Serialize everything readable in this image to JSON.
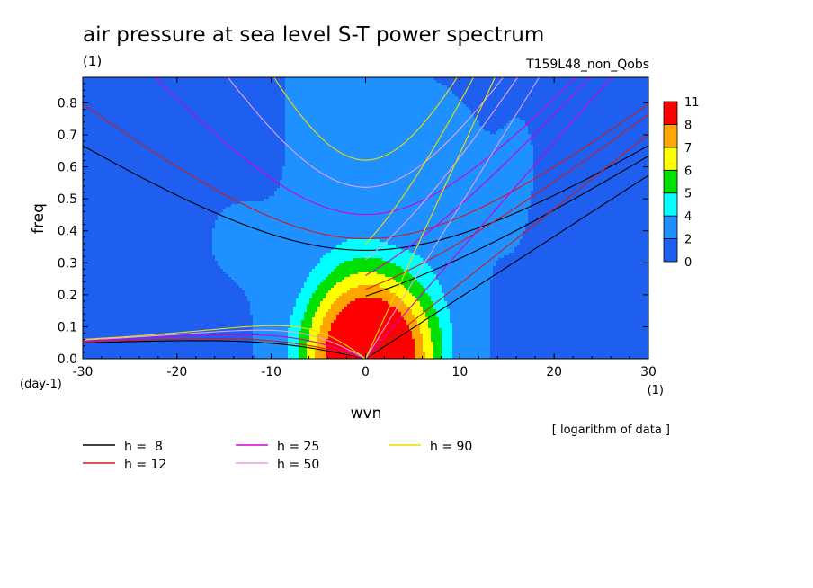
{
  "chart_data": {
    "type": "heatmap",
    "title": "air pressure at sea level S-T power spectrum",
    "title_unit": "(1)",
    "subtitle": "T159L48_non_Qobs",
    "xlabel": "wvn",
    "xlabel_unit": "(1)",
    "ylabel": "freq",
    "ylabel_unit": "(day-1)",
    "xlim": [
      -30,
      30
    ],
    "ylim": [
      0,
      0.88
    ],
    "x_ticks": [
      -30,
      -20,
      -10,
      0,
      10,
      20,
      30
    ],
    "y_ticks": [
      0.0,
      0.1,
      0.2,
      0.3,
      0.4,
      0.5,
      0.6,
      0.7,
      0.8
    ],
    "note": "[ logarithm of data ]",
    "colorbar": {
      "levels": [
        0,
        2,
        4,
        5,
        6,
        7,
        8,
        11
      ],
      "colors": [
        "#1f5ff0",
        "#1e90ff",
        "#00ffff",
        "#00e000",
        "#ffff00",
        "#ffa500",
        "#ff0000"
      ]
    },
    "contour_fill_values": [
      2,
      4,
      5,
      6,
      7,
      8
    ],
    "dispersion_curves": [
      {
        "name": "h =  8",
        "h": 8,
        "color": "#000000"
      },
      {
        "name": "h = 12",
        "h": 12,
        "color": "#d01c1c"
      },
      {
        "name": "h = 25",
        "h": 25,
        "color": "#d000d0"
      },
      {
        "name": "h = 50",
        "h": 50,
        "color": "#e6a0e6"
      },
      {
        "name": "h = 90",
        "h": 90,
        "color": "#f0dc00"
      }
    ]
  }
}
